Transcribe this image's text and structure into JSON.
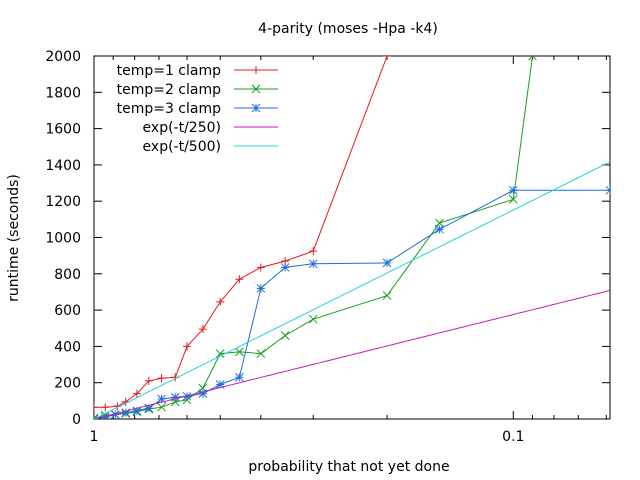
{
  "chart_data": {
    "type": "line",
    "title": "4-parity (moses -Hpa -k4)",
    "xlabel": "probability that not yet done",
    "ylabel": "runtime (seconds)",
    "x_scale": "log",
    "x_reversed": true,
    "xlim": [
      1,
      0.0588
    ],
    "ylim": [
      0,
      2000
    ],
    "grid": false,
    "legend_position": "top-left",
    "x_ticks": [
      {
        "value": 1,
        "label": "1"
      },
      {
        "value": 0.1,
        "label": "0.1"
      }
    ],
    "y_ticks": [
      0,
      200,
      400,
      600,
      800,
      1000,
      1200,
      1400,
      1600,
      1800,
      2000
    ],
    "series": [
      {
        "name": "temp=1 clamp",
        "color": "#e31a1c",
        "marker": "plus",
        "points": [
          [
            1.0,
            65
          ],
          [
            0.94,
            65
          ],
          [
            0.88,
            70
          ],
          [
            0.84,
            95
          ],
          [
            0.79,
            140
          ],
          [
            0.74,
            210
          ],
          [
            0.69,
            225
          ],
          [
            0.64,
            230
          ],
          [
            0.6,
            400
          ],
          [
            0.55,
            495
          ],
          [
            0.5,
            645
          ],
          [
            0.45,
            770
          ],
          [
            0.4,
            835
          ],
          [
            0.35,
            870
          ],
          [
            0.3,
            925
          ],
          [
            0.2,
            2000
          ]
        ]
      },
      {
        "name": "temp=2 clamp",
        "color": "#1a9e1a",
        "marker": "x",
        "points": [
          [
            1.0,
            5
          ],
          [
            0.94,
            20
          ],
          [
            0.89,
            25
          ],
          [
            0.84,
            30
          ],
          [
            0.79,
            40
          ],
          [
            0.74,
            55
          ],
          [
            0.69,
            65
          ],
          [
            0.64,
            95
          ],
          [
            0.6,
            105
          ],
          [
            0.55,
            170
          ],
          [
            0.5,
            360
          ],
          [
            0.45,
            370
          ],
          [
            0.4,
            360
          ],
          [
            0.35,
            460
          ],
          [
            0.3,
            550
          ],
          [
            0.2,
            680
          ],
          [
            0.15,
            1080
          ],
          [
            0.1,
            1210
          ],
          [
            0.09,
            2000
          ]
        ]
      },
      {
        "name": "temp=3 clamp",
        "color": "#1e6fd9",
        "marker": "star",
        "points": [
          [
            1.0,
            0
          ],
          [
            0.94,
            10
          ],
          [
            0.89,
            25
          ],
          [
            0.84,
            35
          ],
          [
            0.79,
            45
          ],
          [
            0.74,
            60
          ],
          [
            0.69,
            110
          ],
          [
            0.64,
            120
          ],
          [
            0.6,
            125
          ],
          [
            0.55,
            140
          ],
          [
            0.5,
            190
          ],
          [
            0.45,
            230
          ],
          [
            0.4,
            720
          ],
          [
            0.35,
            835
          ],
          [
            0.3,
            855
          ],
          [
            0.2,
            860
          ],
          [
            0.15,
            1045
          ],
          [
            0.1,
            1260
          ],
          [
            0.0588,
            1260
          ]
        ]
      },
      {
        "name": "exp(-t/250)",
        "color": "#c21bc2",
        "marker": "none",
        "function": "-250*ln(x)"
      },
      {
        "name": "exp(-t/500)",
        "color": "#22d3d8",
        "marker": "none",
        "function": "-500*ln(x)"
      }
    ]
  }
}
